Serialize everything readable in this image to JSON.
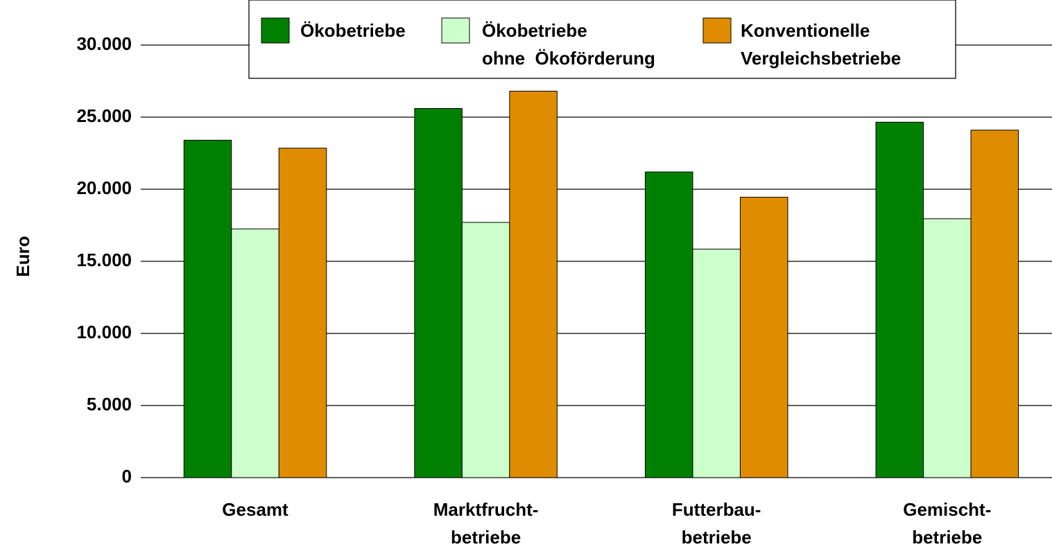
{
  "chart_data": {
    "type": "bar",
    "y_label": "Euro",
    "categories": [
      "Gesamt",
      "Marktfrucht-\nbetriebe",
      "Futterbau-\nbetriebe",
      "Gemischt-\nbetriebe"
    ],
    "series": [
      {
        "name": "Ökobetriebe",
        "color": "#008000",
        "values": [
          23400,
          25600,
          21200,
          24650
        ]
      },
      {
        "name": "Ökobetriebe\nohne  Ökoförderung",
        "color": "#ccffcc",
        "values": [
          17250,
          17700,
          15850,
          17950
        ]
      },
      {
        "name": "Konventionelle\nVergleichsbetriebe",
        "color": "#e08c00",
        "values": [
          22850,
          26800,
          19450,
          24100
        ]
      }
    ],
    "ylim": [
      0,
      30000
    ],
    "yticks": [
      0,
      {
        "value": 5000,
        "label": "5.000"
      },
      {
        "value": 10000,
        "label": "10.000"
      },
      {
        "value": 15000,
        "label": "15.000"
      },
      {
        "value": 20000,
        "label": "20.000"
      },
      {
        "value": 25000,
        "label": "25.000"
      },
      {
        "value": 30000,
        "label": "30.000"
      }
    ],
    "grid": true,
    "legend": "top"
  }
}
